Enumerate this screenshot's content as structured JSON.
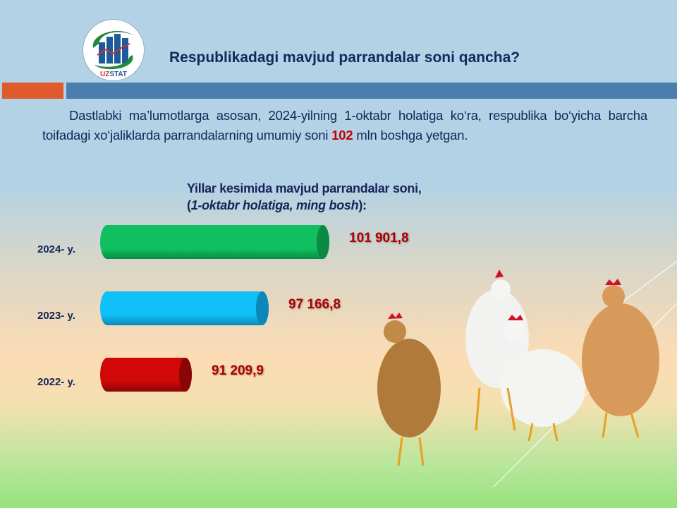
{
  "header": {
    "title": "Respublikadagi mavjud parrandalar soni qancha?",
    "logo_text": "UZSTAT"
  },
  "intro": {
    "text_before": "Dastlabki ma’lumotlarga asosan, 2024-yilning 1-oktabr holatiga ko‘ra, respublika bo‘yicha barcha toifadagi xo‘jaliklarda parrandalarning umumiy soni ",
    "highlight": "102",
    "text_after": " mln boshga yetgan."
  },
  "colors": {
    "accent_orange": "#e05a2b",
    "accent_blue": "#4a7fad",
    "value_red": "#b00000",
    "text_navy": "#13255a"
  },
  "chart_data": {
    "type": "bar",
    "orientation": "horizontal",
    "title": "Yillar kesimida mavjud parrandalar soni,",
    "subtitle_open": "(",
    "subtitle_italic": "1-oktabr holatiga, ming bosh",
    "subtitle_close": "):",
    "categories": [
      "2024- y.",
      "2023- y.",
      "2022- y."
    ],
    "values": [
      101901.8,
      97166.8,
      91209.9
    ],
    "value_labels": [
      "101 901,8",
      "97 166,8",
      "91 209,9"
    ],
    "bar_colors": [
      "#10c060",
      "#10bff5",
      "#d00808"
    ],
    "cap_colors": [
      "#0a8a45",
      "#0a88b8",
      "#8a0505"
    ],
    "xlim": [
      84100,
      102500
    ],
    "grid": false,
    "legend": "none"
  }
}
